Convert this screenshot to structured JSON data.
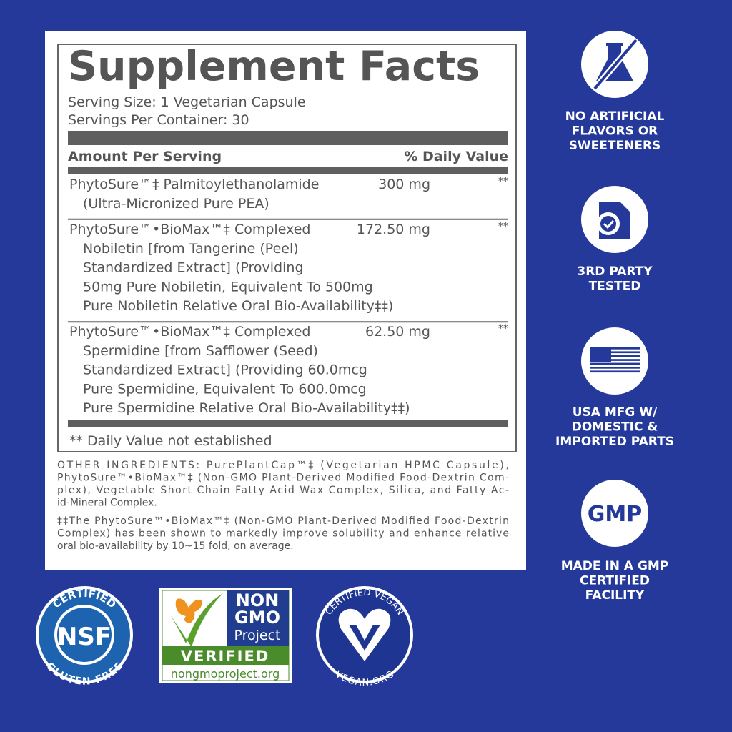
{
  "panel": {
    "title": "Supplement Facts",
    "serving_size": "Serving Size: 1 Vegetarian Capsule",
    "servings_per_container": "Servings Per Container: 30",
    "amount_header": "Amount Per Serving",
    "dv_header": "% Daily Value",
    "ingredients": [
      {
        "lines": [
          "PhytoSure™‡ Palmitoylethanolamide",
          "(Ultra-Micronized Pure PEA)"
        ],
        "amount": "300 mg",
        "dv": "**"
      },
      {
        "lines": [
          "PhytoSure™•BioMax™‡ Complexed",
          "Nobiletin [from Tangerine (Peel)",
          "Standardized Extract] (Providing",
          "50mg Pure Nobiletin, Equivalent To 500mg",
          "Pure Nobiletin Relative Oral Bio-Availability‡‡)"
        ],
        "amount": "172.50 mg",
        "dv": "**"
      },
      {
        "lines": [
          "PhytoSure™•BioMax™‡ Complexed",
          "Spermidine [from Safflower (Seed)",
          "Standardized Extract] (Providing 60.0mcg",
          "Pure Spermidine, Equivalent To 600.0mcg",
          "Pure Spermidine Relative Oral Bio-Availability‡‡)"
        ],
        "amount": "62.50 mg",
        "dv": "**"
      }
    ],
    "footnote": "** Daily Value not established"
  },
  "other_ingredients": [
    "OTHER INGREDIENTS: PurePlantCap™‡ (Vegetarian HPMC Capsule),",
    "PhytoSure™•BioMax™‡ (Non-GMO Plant-Derived Modified Food-Dextrin Com-",
    "plex), Vegetable Short Chain Fatty Acid Wax Complex, Silica, and Fatty Ac-",
    "id-Mineral Complex."
  ],
  "biomax_note": [
    "‡‡The PhytoSure™•BioMax™‡ (Non-GMO Plant-Derived Modified Food-Dextrin",
    "Complex) has been shown to markedly improve solubility and enhance relative",
    "oral bio-availability by 10~15 fold, on average."
  ],
  "features": [
    {
      "label": [
        "NO ARTIFICIAL",
        "FLAVORS OR",
        "SWEETENERS"
      ]
    },
    {
      "label": [
        "3RD PARTY",
        "TESTED"
      ]
    },
    {
      "label": [
        "USA MFG W/",
        "DOMESTIC &",
        "IMPORTED PARTS"
      ]
    },
    {
      "icon_text": "GMP",
      "label": [
        "MADE IN A GMP",
        "CERTIFIED",
        "FACILITY"
      ]
    }
  ],
  "certifications": {
    "nsf": {
      "top": "CERTIFIED",
      "center": "NSF",
      "bottom": "GLUTEN-FREE"
    },
    "non_gmo": {
      "lines": [
        "NON",
        "GMO",
        "Project"
      ],
      "verified": "VERIFIED",
      "url": "nongmoproject.org"
    },
    "vegan": {
      "top": "CERTIFIED VEGAN",
      "bottom": "VEGAN.ORG"
    }
  }
}
